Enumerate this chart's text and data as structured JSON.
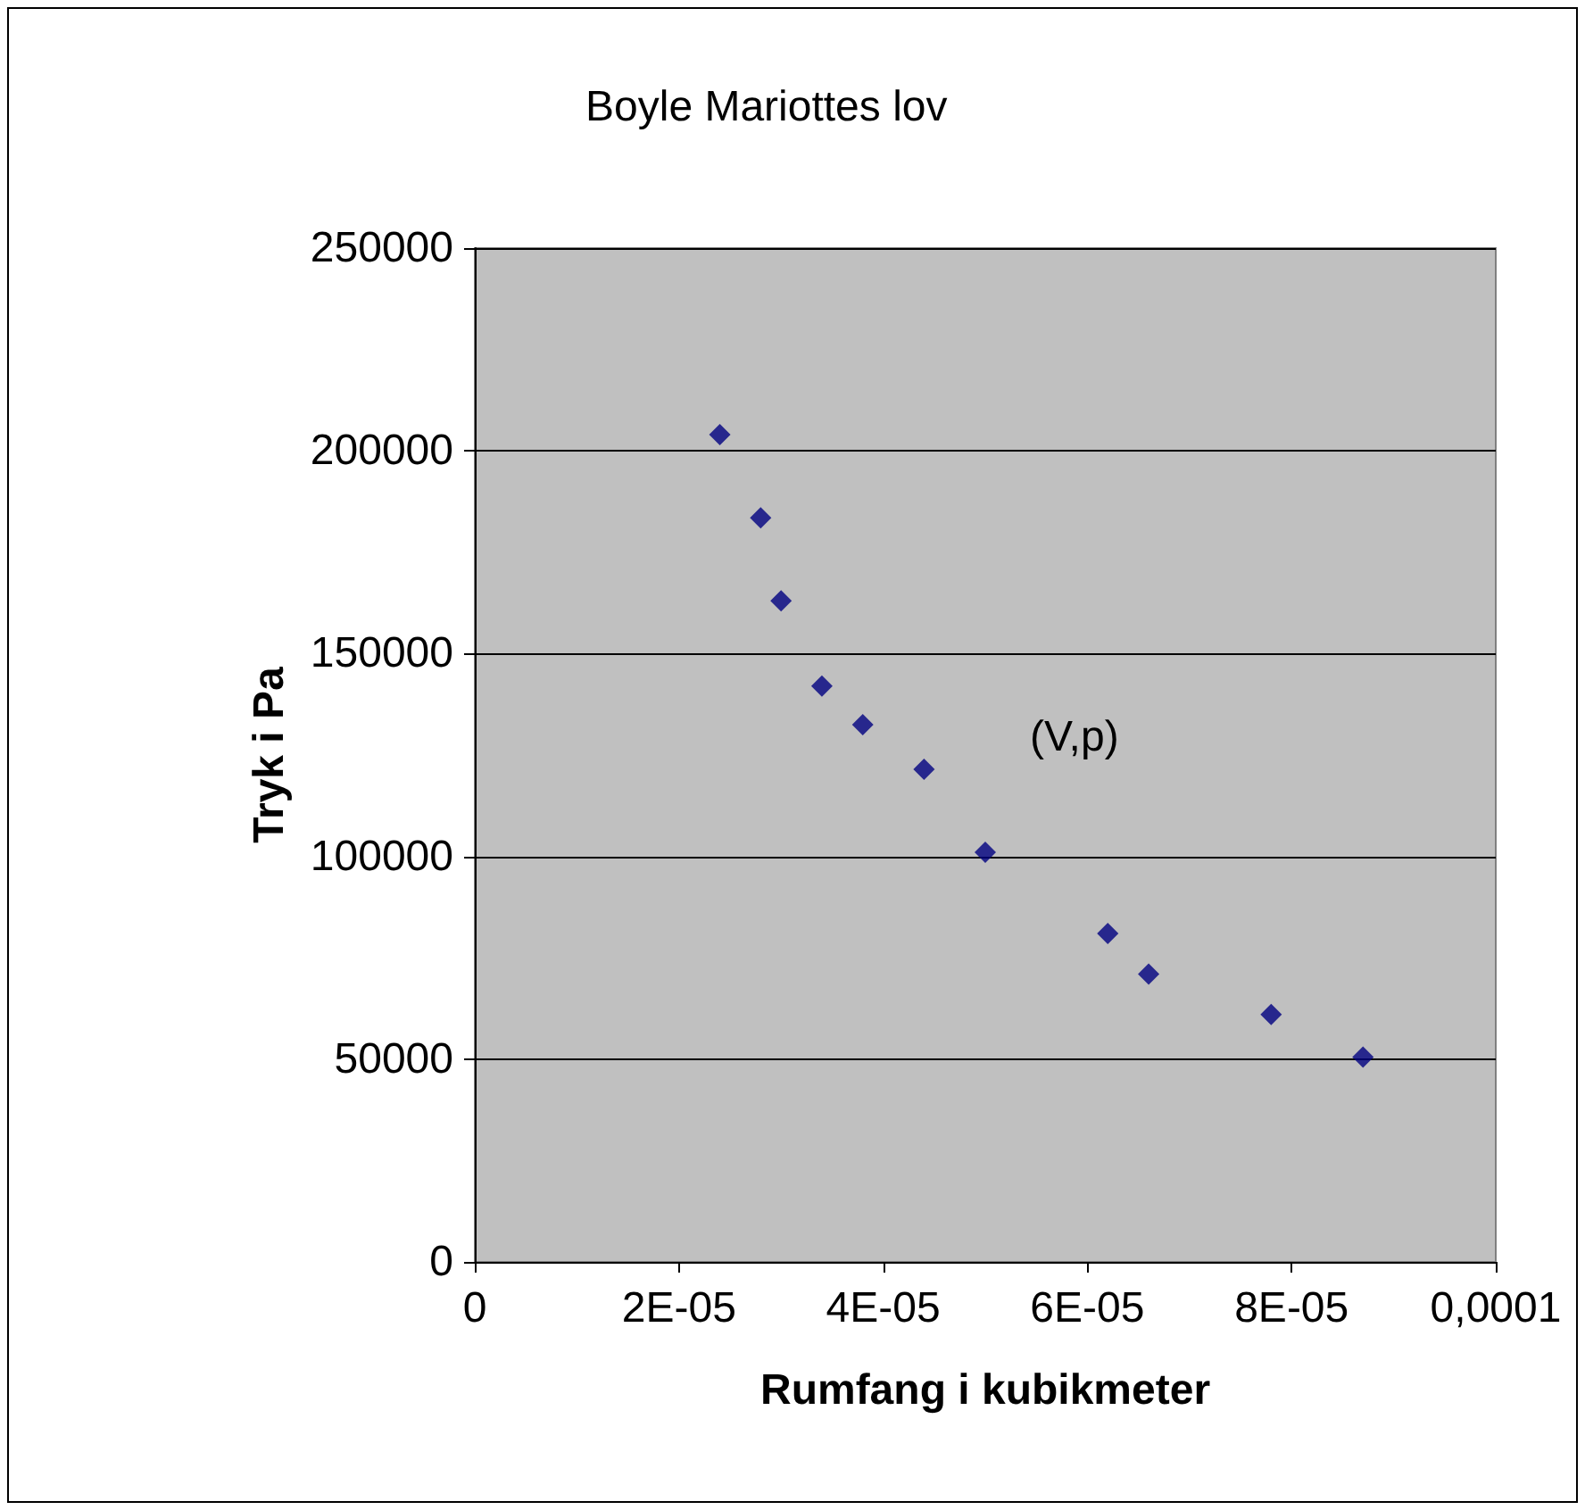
{
  "chart_data": {
    "type": "scatter",
    "title": "Boyle Mariottes lov",
    "xlabel": "Rumfang i kubikmeter",
    "ylabel": "Tryk i Pa",
    "x": [
      2.4e-05,
      2.8e-05,
      3e-05,
      3.4e-05,
      3.8e-05,
      4.4e-05,
      5e-05,
      6.2e-05,
      6.6e-05,
      7.8e-05,
      8.7e-05
    ],
    "series": [
      {
        "color": "#000080",
        "values": [
          204000,
          183500,
          163000,
          142000,
          132500,
          121500,
          101000,
          81000,
          71000,
          61000,
          50500
        ]
      }
    ],
    "xlim": [
      0,
      0.0001
    ],
    "xticks": [
      {
        "value": 0,
        "label": "0"
      },
      {
        "value": 2e-05,
        "label": "2E-05"
      },
      {
        "value": 4e-05,
        "label": "4E-05"
      },
      {
        "value": 6e-05,
        "label": "6E-05"
      },
      {
        "value": 8e-05,
        "label": "8E-05"
      },
      {
        "value": 0.0001,
        "label": "0,0001"
      }
    ],
    "ylim": [
      0,
      250000
    ],
    "yticks": [
      0,
      50000,
      100000,
      150000,
      200000,
      250000
    ],
    "annotations": [
      "(V,p)"
    ],
    "grid": "y",
    "marker": "diamond"
  }
}
